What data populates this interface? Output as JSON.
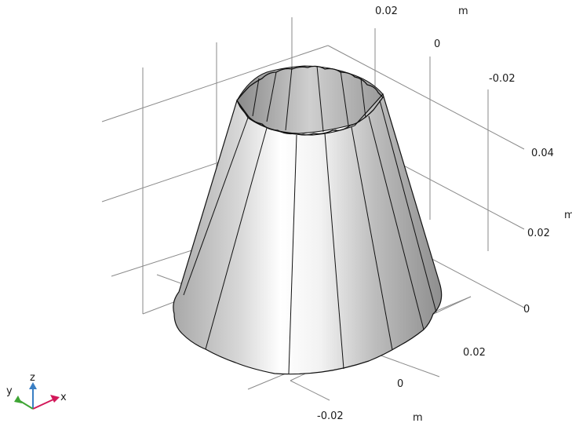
{
  "scene": {
    "background": "#ffffff",
    "grid_color": "#8a8a8a",
    "surface_color": "#c8c8c8",
    "edge_color": "#111111"
  },
  "axes": {
    "top_labels": [
      "0.02",
      "0",
      "-0.02"
    ],
    "top_unit": "m",
    "right_labels": [
      "0.04",
      "0.02",
      "0"
    ],
    "right_unit": "m",
    "bottom_labels": [
      "0.02",
      "0",
      "-0.02"
    ],
    "bottom_unit": "m"
  },
  "triad": {
    "x_label": "x",
    "y_label": "y",
    "z_label": "z",
    "x_color": "#d2195a",
    "y_color": "#3fa535",
    "z_color": "#3a7fc4"
  }
}
